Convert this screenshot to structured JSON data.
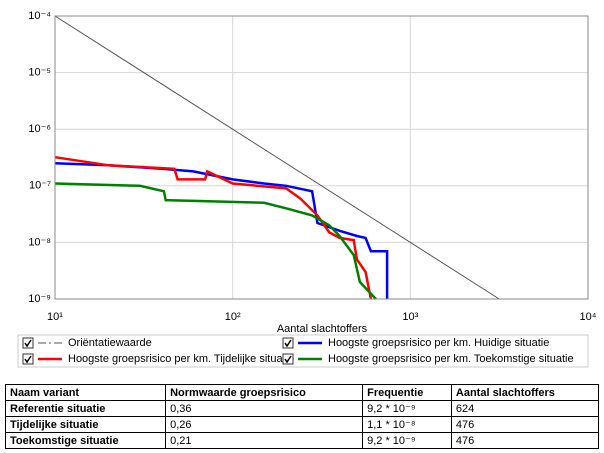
{
  "chart_data": {
    "type": "line",
    "x_label": "Aantal slachtoffers",
    "xscale": "log",
    "yscale": "log",
    "grid": true,
    "xlim": [
      10,
      10000
    ],
    "ylim": [
      1e-09,
      0.0001
    ],
    "xticks": [
      {
        "value": 10,
        "label": "10¹"
      },
      {
        "value": 100,
        "label": "10²"
      },
      {
        "value": 1000,
        "label": "10³"
      },
      {
        "value": 10000,
        "label": "10⁴"
      }
    ],
    "yticks": [
      {
        "value": 1e-09,
        "label": "10⁻⁹"
      },
      {
        "value": 1e-08,
        "label": "10⁻⁸"
      },
      {
        "value": 1e-07,
        "label": "10⁻⁷"
      },
      {
        "value": 1e-06,
        "label": "10⁻⁶"
      },
      {
        "value": 1e-05,
        "label": "10⁻⁵"
      },
      {
        "value": 0.0001,
        "label": "10⁻⁴"
      }
    ],
    "series": [
      {
        "name": "Oriëntatiewaarde",
        "color": "#555555",
        "width": 1,
        "dash": true,
        "x": [
          10,
          3162
        ],
        "values": [
          0.0001,
          1e-09
        ]
      },
      {
        "name": "Hoogste groepsrisico per km. Huidige situatie",
        "color": "#0000ff",
        "width": 2.5,
        "x": [
          10,
          20,
          40,
          60,
          100,
          150,
          200,
          280,
          300,
          400,
          500,
          560,
          600,
          740,
          740
        ],
        "values": [
          2.5e-07,
          2.3e-07,
          2e-07,
          1.8e-07,
          1.3e-07,
          1.1e-07,
          1e-07,
          8e-08,
          2.2e-08,
          1.6e-08,
          1.3e-08,
          1.2e-08,
          7e-09,
          7e-09,
          1e-09
        ]
      },
      {
        "name": "Hoogste groepsrisico per km. Tijdelijke situatie",
        "color": "#ff0000",
        "width": 2.5,
        "x": [
          10,
          20,
          47,
          49,
          70,
          72,
          100,
          200,
          240,
          300,
          350,
          400,
          480,
          500,
          560,
          600
        ],
        "values": [
          3.2e-07,
          2.3e-07,
          2e-07,
          1.3e-07,
          1.3e-07,
          1.8e-07,
          1.1e-07,
          9e-08,
          6e-08,
          3e-08,
          1.5e-08,
          1.2e-08,
          1.1e-08,
          5e-09,
          3e-09,
          1e-09
        ]
      },
      {
        "name": "Hoogste groepsrisico per km. Toekomstige situatie",
        "color": "#008000",
        "width": 2.5,
        "x": [
          10,
          30,
          41,
          42,
          150,
          200,
          280,
          350,
          400,
          480,
          520,
          640
        ],
        "values": [
          1.1e-07,
          1e-07,
          8e-08,
          5.6e-08,
          5e-08,
          4e-08,
          3e-08,
          2e-08,
          1.3e-08,
          6e-09,
          2e-09,
          1e-09
        ]
      }
    ]
  },
  "table": {
    "header": [
      "Naam variant",
      "Normwaarde groepsrisico",
      "Frequentie",
      "Aantal slachtoffers"
    ],
    "rows": [
      [
        "Referentie situatie",
        "0,36",
        "9,2 * 10⁻⁹",
        "624"
      ],
      [
        "Tijdelijke situatie",
        "0,26",
        "1,1 * 10⁻⁸",
        "476"
      ],
      [
        "Toekomstige situatie",
        "0,21",
        "9,2 * 10⁻⁹",
        "476"
      ]
    ]
  }
}
